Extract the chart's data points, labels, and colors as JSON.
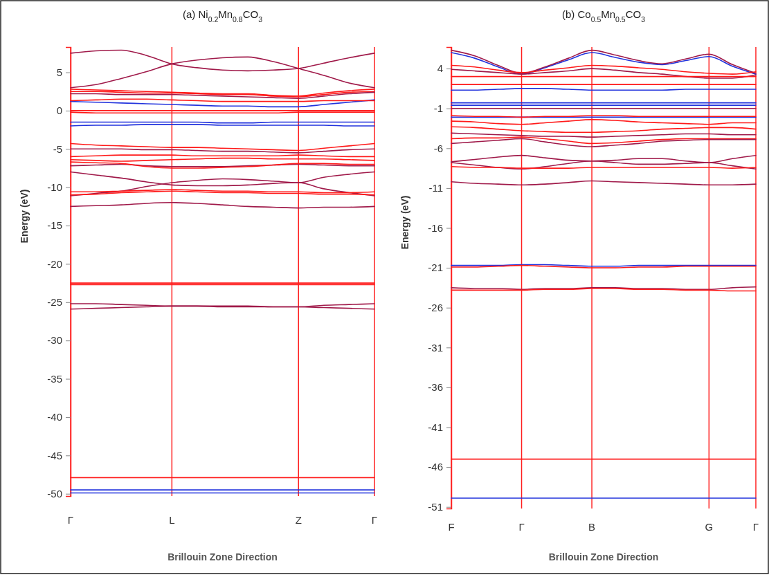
{
  "chart_data": [
    {
      "type": "line",
      "title": "(a) Ni$_{0.2}$Mn$_{0.8}$CO$_{3}$",
      "xlabel": "Brillouin  Zone Direction",
      "ylabel": "Energy (eV)",
      "grid": "x",
      "categories": [
        "Γ",
        null,
        null,
        null,
        "L",
        null,
        null,
        null,
        null,
        "Z",
        null,
        null,
        "Γ"
      ],
      "ylim": [
        -50.3,
        8.3
      ],
      "yticks": [
        5,
        0,
        -5,
        -10,
        -15,
        -20,
        -25,
        -30,
        -35,
        -40,
        -45,
        -50
      ],
      "series": [
        {
          "color": "#2233dd",
          "values": [
            -1.5,
            -1.5,
            -1.5,
            -1.5,
            -1.5,
            -1.5,
            -1.6,
            -1.6,
            -1.5,
            -1.5,
            -1.5,
            -1.5,
            -1.5
          ]
        },
        {
          "color": "#2233dd",
          "values": [
            -2.0,
            -1.9,
            -1.9,
            -1.8,
            -1.8,
            -1.8,
            -1.9,
            -1.9,
            -1.9,
            -1.9,
            -1.9,
            -2.0,
            -2.0
          ]
        },
        {
          "color": "#2233dd",
          "values": [
            1.2,
            1.1,
            1.0,
            0.9,
            0.8,
            0.7,
            0.6,
            0.6,
            0.5,
            0.5,
            0.8,
            1.1,
            1.4
          ]
        },
        {
          "color": "#2233dd",
          "values": [
            -49.5,
            -49.5,
            -49.5,
            -49.5,
            -49.5,
            -49.5,
            -49.5,
            -49.5,
            -49.5,
            -49.5,
            -49.5,
            -49.5,
            -49.5
          ]
        },
        {
          "color": "#2233dd",
          "values": [
            -49.9,
            -49.9,
            -49.9,
            -49.9,
            -49.9,
            -49.9,
            -49.9,
            -49.9,
            -49.9,
            -49.9,
            -49.9,
            -49.9,
            -49.9
          ]
        },
        {
          "color": "#a01a4a",
          "values": [
            7.5,
            7.8,
            7.9,
            7.2,
            6.1,
            5.6,
            5.3,
            5.2,
            5.3,
            5.5,
            6.2,
            6.9,
            7.5
          ]
        },
        {
          "color": "#a01a4a",
          "values": [
            3.0,
            3.4,
            4.2,
            5.1,
            6.1,
            6.6,
            6.9,
            7.0,
            6.4,
            5.5,
            4.6,
            3.6,
            3.0
          ]
        },
        {
          "color": "#ff1a1a",
          "values": [
            2.5,
            2.5,
            2.4,
            2.3,
            2.3,
            2.2,
            2.1,
            2.1,
            1.9,
            1.8,
            2.1,
            2.4,
            2.5
          ]
        },
        {
          "color": "#ff1a1a",
          "values": [
            2.8,
            2.7,
            2.6,
            2.5,
            2.4,
            2.3,
            2.2,
            2.2,
            2.0,
            1.9,
            2.3,
            2.6,
            2.8
          ]
        },
        {
          "color": "#a01a4a",
          "values": [
            2.2,
            2.2,
            2.1,
            2.1,
            2.1,
            2.0,
            1.9,
            1.8,
            1.7,
            1.6,
            1.9,
            2.2,
            2.4
          ]
        },
        {
          "color": "#ff1a1a",
          "values": [
            1.3,
            1.4,
            1.5,
            1.5,
            1.4,
            1.3,
            1.2,
            1.2,
            1.2,
            1.2,
            1.3,
            1.3,
            1.3
          ]
        },
        {
          "color": "#ff1a1a",
          "values": [
            0,
            0,
            0,
            0,
            0,
            0,
            0,
            0,
            0,
            0,
            0,
            0,
            0
          ]
        },
        {
          "color": "#ff1a1a",
          "values": [
            -0.2,
            -0.3,
            -0.3,
            -0.3,
            -0.3,
            -0.3,
            -0.3,
            -0.3,
            -0.3,
            -0.2,
            -0.2,
            -0.2,
            -0.2
          ]
        },
        {
          "color": "#ff1a1a",
          "values": [
            -4.3,
            -4.5,
            -4.6,
            -4.7,
            -4.8,
            -4.8,
            -4.9,
            -5.0,
            -5.1,
            -5.2,
            -4.9,
            -4.6,
            -4.3
          ]
        },
        {
          "color": "#a01a4a",
          "values": [
            -5.0,
            -5.0,
            -5.0,
            -5.1,
            -5.1,
            -5.2,
            -5.3,
            -5.3,
            -5.4,
            -5.5,
            -5.3,
            -5.1,
            -5.0
          ]
        },
        {
          "color": "#ff1a1a",
          "values": [
            -6.0,
            -5.9,
            -5.8,
            -5.8,
            -5.8,
            -5.9,
            -5.9,
            -5.9,
            -5.9,
            -5.8,
            -5.9,
            -6.0,
            -6.0
          ]
        },
        {
          "color": "#ff1a1a",
          "values": [
            -6.4,
            -6.5,
            -6.6,
            -6.5,
            -6.4,
            -6.3,
            -6.2,
            -6.2,
            -6.3,
            -6.3,
            -6.3,
            -6.4,
            -6.5
          ]
        },
        {
          "color": "#a01a4a",
          "values": [
            -7.2,
            -7.1,
            -7.0,
            -7.2,
            -7.3,
            -7.3,
            -7.3,
            -7.2,
            -7.1,
            -7.0,
            -7.1,
            -7.2,
            -7.2
          ]
        },
        {
          "color": "#ff1a1a",
          "values": [
            -6.7,
            -6.8,
            -6.9,
            -7.3,
            -7.5,
            -7.5,
            -7.4,
            -7.3,
            -7.1,
            -6.9,
            -6.9,
            -7.0,
            -7.0
          ]
        },
        {
          "color": "#a01a4a",
          "values": [
            -8.0,
            -8.4,
            -8.8,
            -9.3,
            -9.7,
            -9.8,
            -9.8,
            -9.7,
            -9.5,
            -9.4,
            -10.2,
            -10.7,
            -11.1
          ]
        },
        {
          "color": "#a01a4a",
          "values": [
            -11.1,
            -10.8,
            -10.5,
            -9.9,
            -9.4,
            -9.1,
            -8.9,
            -9.0,
            -9.2,
            -9.4,
            -8.7,
            -8.3,
            -8.0
          ]
        },
        {
          "color": "#ff1a1a",
          "values": [
            -10.6,
            -10.6,
            -10.5,
            -10.4,
            -10.3,
            -10.4,
            -10.5,
            -10.5,
            -10.6,
            -10.6,
            -10.7,
            -10.7,
            -10.6
          ]
        },
        {
          "color": "#ff1a1a",
          "values": [
            -11.0,
            -10.9,
            -10.7,
            -10.6,
            -10.5,
            -10.6,
            -10.7,
            -10.7,
            -10.8,
            -10.8,
            -10.9,
            -10.9,
            -11.0
          ]
        },
        {
          "color": "#a01a4a",
          "values": [
            -12.5,
            -12.4,
            -12.3,
            -12.1,
            -12.0,
            -12.1,
            -12.3,
            -12.5,
            -12.6,
            -12.7,
            -12.6,
            -12.6,
            -12.5
          ]
        },
        {
          "color": "#ff1a1a",
          "values": [
            -22.5,
            -22.5,
            -22.5,
            -22.5,
            -22.5,
            -22.5,
            -22.5,
            -22.5,
            -22.5,
            -22.5,
            -22.5,
            -22.5,
            -22.5
          ]
        },
        {
          "color": "#ff1a1a",
          "values": [
            -22.7,
            -22.7,
            -22.7,
            -22.7,
            -22.7,
            -22.7,
            -22.7,
            -22.7,
            -22.7,
            -22.7,
            -22.7,
            -22.7,
            -22.7
          ]
        },
        {
          "color": "#a01a4a",
          "values": [
            -25.2,
            -25.2,
            -25.3,
            -25.4,
            -25.5,
            -25.5,
            -25.5,
            -25.5,
            -25.6,
            -25.6,
            -25.4,
            -25.3,
            -25.2
          ]
        },
        {
          "color": "#a01a4a",
          "values": [
            -25.9,
            -25.8,
            -25.7,
            -25.6,
            -25.5,
            -25.5,
            -25.6,
            -25.6,
            -25.6,
            -25.6,
            -25.7,
            -25.8,
            -25.9
          ]
        },
        {
          "color": "#ff1a1a",
          "values": [
            -47.9,
            -47.9,
            -47.9,
            -47.9,
            -47.9,
            -47.9,
            -47.9,
            -47.9,
            -47.9,
            -47.9,
            -47.9,
            -47.9,
            -47.9
          ]
        }
      ]
    },
    {
      "type": "line",
      "title": "(b) Co$_{0.5}$Mn$_{0.5}$CO$_{3}$",
      "xlabel": "Brillouin  Zone Direction",
      "ylabel": "Energy (eV)",
      "grid": "x",
      "categories": [
        "F",
        null,
        null,
        "Γ",
        null,
        null,
        "B",
        null,
        null,
        null,
        null,
        "G",
        null,
        "Γ"
      ],
      "ylim": [
        -51.2,
        6.7
      ],
      "yticks": [
        4,
        -1,
        -6,
        -11,
        -16,
        -21,
        -26,
        -31,
        -36,
        -41,
        -46,
        -51
      ],
      "series": [
        {
          "color": "#2233dd",
          "values": [
            6.0,
            5.3,
            4.2,
            3.3,
            4.1,
            5.1,
            6.0,
            5.4,
            4.8,
            4.5,
            5.0,
            5.5,
            4.3,
            3.3
          ]
        },
        {
          "color": "#2233dd",
          "values": [
            1.3,
            1.3,
            1.4,
            1.5,
            1.5,
            1.4,
            1.3,
            1.3,
            1.3,
            1.3,
            1.4,
            1.4,
            1.4,
            1.4
          ]
        },
        {
          "color": "#2233dd",
          "values": [
            -0.3,
            -0.3,
            -0.3,
            -0.3,
            -0.3,
            -0.3,
            -0.3,
            -0.3,
            -0.3,
            -0.3,
            -0.3,
            -0.3,
            -0.3,
            -0.3
          ]
        },
        {
          "color": "#2233dd",
          "values": [
            -0.6,
            -0.6,
            -0.6,
            -0.6,
            -0.6,
            -0.6,
            -0.6,
            -0.6,
            -0.6,
            -0.6,
            -0.6,
            -0.6,
            -0.6,
            -0.6
          ]
        },
        {
          "color": "#2233dd",
          "values": [
            -2.1,
            -2.1,
            -2.1,
            -2.1,
            -2.1,
            -2.1,
            -2.1,
            -2.1,
            -2.1,
            -2.1,
            -2.1,
            -2.1,
            -2.1,
            -2.1
          ]
        },
        {
          "color": "#2233dd",
          "values": [
            -20.7,
            -20.7,
            -20.7,
            -20.6,
            -20.6,
            -20.7,
            -20.8,
            -20.8,
            -20.7,
            -20.7,
            -20.7,
            -20.7,
            -20.7,
            -20.7
          ]
        },
        {
          "color": "#2233dd",
          "values": [
            -49.9,
            -49.9,
            -49.9,
            -49.9,
            -49.9,
            -49.9,
            -49.9,
            -49.9,
            -49.9,
            -49.9,
            -49.9,
            -49.9,
            -49.9,
            -49.9
          ]
        },
        {
          "color": "#a01a4a",
          "values": [
            6.3,
            5.6,
            4.4,
            3.4,
            4.2,
            5.3,
            6.3,
            5.7,
            5.0,
            4.6,
            5.2,
            5.8,
            4.5,
            3.4
          ]
        },
        {
          "color": "#ff1a1a",
          "values": [
            4.4,
            4.2,
            3.8,
            3.5,
            3.8,
            4.1,
            4.4,
            4.3,
            4.1,
            3.9,
            3.6,
            3.4,
            3.3,
            3.6
          ]
        },
        {
          "color": "#a01a4a",
          "values": [
            3.9,
            3.7,
            3.5,
            3.3,
            3.5,
            3.7,
            4.0,
            3.8,
            3.5,
            3.3,
            3.0,
            2.8,
            2.8,
            3.2
          ]
        },
        {
          "color": "#ff1a1a",
          "values": [
            3.0,
            3.0,
            3.0,
            3.0,
            3.0,
            3.0,
            3.0,
            3.0,
            3.0,
            3.0,
            3.0,
            3.0,
            3.0,
            3.0
          ]
        },
        {
          "color": "#ff1a1a",
          "values": [
            2.0,
            2.0,
            2.0,
            2.0,
            2.0,
            2.0,
            2.0,
            2.0,
            2.0,
            2.0,
            2.0,
            2.0,
            2.0,
            2.0
          ]
        },
        {
          "color": "#a01a4a",
          "values": [
            -1.0,
            -1.0,
            -1.0,
            -1.0,
            -1.0,
            -1.0,
            -1.0,
            -1.0,
            -1.0,
            -1.0,
            -1.0,
            -1.0,
            -1.0,
            -1.0
          ]
        },
        {
          "color": "#ff1a1a",
          "values": [
            -1.9,
            -2.0,
            -2.0,
            -2.1,
            -2.0,
            -2.0,
            -1.9,
            -1.9,
            -2.0,
            -2.0,
            -2.0,
            -2.0,
            -2.0,
            -2.0
          ]
        },
        {
          "color": "#ff1a1a",
          "values": [
            -2.6,
            -2.7,
            -2.9,
            -3.0,
            -2.8,
            -2.6,
            -2.4,
            -2.5,
            -2.7,
            -2.8,
            -2.9,
            -3.0,
            -2.8,
            -2.8
          ]
        },
        {
          "color": "#ff1a1a",
          "values": [
            -3.3,
            -3.4,
            -3.6,
            -3.8,
            -3.9,
            -4.0,
            -4.0,
            -3.9,
            -3.8,
            -3.6,
            -3.5,
            -3.4,
            -3.4,
            -3.6
          ]
        },
        {
          "color": "#a01a4a",
          "values": [
            -4.1,
            -4.2,
            -4.3,
            -4.4,
            -4.5,
            -4.5,
            -4.6,
            -4.5,
            -4.4,
            -4.3,
            -4.2,
            -4.2,
            -4.3,
            -4.3
          ]
        },
        {
          "color": "#ff1a1a",
          "values": [
            -4.8,
            -4.7,
            -4.7,
            -4.6,
            -4.8,
            -5.1,
            -5.4,
            -5.3,
            -5.1,
            -4.9,
            -4.8,
            -4.8,
            -4.8,
            -4.8
          ]
        },
        {
          "color": "#a01a4a",
          "values": [
            -5.4,
            -5.2,
            -5.0,
            -4.8,
            -5.2,
            -5.6,
            -5.8,
            -5.6,
            -5.4,
            -5.1,
            -5.0,
            -4.9,
            -4.9,
            -4.9
          ]
        },
        {
          "color": "#a01a4a",
          "values": [
            -7.7,
            -7.4,
            -7.1,
            -6.9,
            -7.2,
            -7.5,
            -7.6,
            -7.5,
            -7.3,
            -7.3,
            -7.6,
            -7.8,
            -7.3,
            -6.9
          ]
        },
        {
          "color": "#a01a4a",
          "values": [
            -7.8,
            -8.1,
            -8.4,
            -8.6,
            -8.3,
            -7.9,
            -7.6,
            -7.8,
            -8.0,
            -8.0,
            -7.9,
            -7.8,
            -8.2,
            -8.6
          ]
        },
        {
          "color": "#ff1a1a",
          "values": [
            -8.3,
            -8.4,
            -8.4,
            -8.5,
            -8.5,
            -8.5,
            -8.4,
            -8.4,
            -8.4,
            -8.4,
            -8.4,
            -8.4,
            -8.5,
            -8.4
          ]
        },
        {
          "color": "#a01a4a",
          "values": [
            -10.2,
            -10.4,
            -10.5,
            -10.6,
            -10.5,
            -10.3,
            -10.1,
            -10.2,
            -10.3,
            -10.4,
            -10.5,
            -10.6,
            -10.6,
            -10.5
          ]
        },
        {
          "color": "#ff1a1a",
          "values": [
            -20.9,
            -20.9,
            -20.8,
            -20.7,
            -20.8,
            -20.9,
            -21.0,
            -21.0,
            -20.9,
            -20.9,
            -20.8,
            -20.8,
            -20.8,
            -20.8
          ]
        },
        {
          "color": "#a01a4a",
          "values": [
            -23.5,
            -23.6,
            -23.6,
            -23.7,
            -23.6,
            -23.6,
            -23.5,
            -23.5,
            -23.6,
            -23.6,
            -23.7,
            -23.7,
            -23.5,
            -23.4
          ]
        },
        {
          "color": "#ff1a1a",
          "values": [
            -23.8,
            -23.8,
            -23.8,
            -23.8,
            -23.7,
            -23.7,
            -23.6,
            -23.6,
            -23.7,
            -23.7,
            -23.8,
            -23.8,
            -23.9,
            -23.9
          ]
        },
        {
          "color": "#ff1a1a",
          "values": [
            -45.0,
            -45.0,
            -45.0,
            -45.0,
            -45.0,
            -45.0,
            -45.0,
            -45.0,
            -45.0,
            -45.0,
            -45.0,
            -45.0,
            -45.0,
            -45.0
          ]
        }
      ]
    }
  ]
}
